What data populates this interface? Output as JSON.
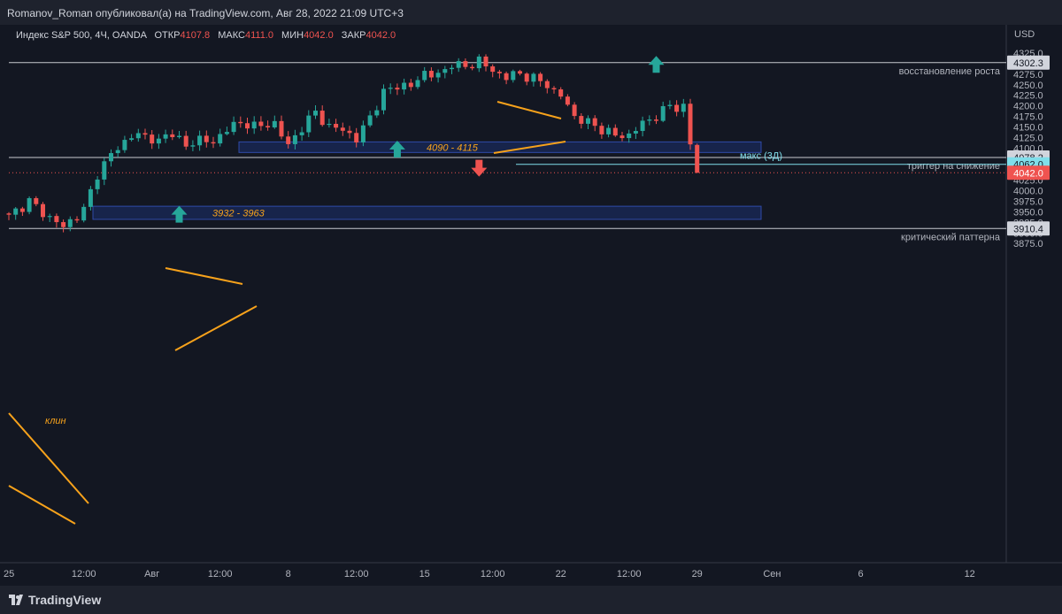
{
  "header": {
    "published_by": "Romanov_Roman опубликовал(а) на TradingView.com, Авг 28, 2022 21:09 UTC+3"
  },
  "legend": {
    "symbol": "Индекс S&P 500, 4Ч, OANDA",
    "open_label": "ОТКР",
    "open_value": "4107.8",
    "high_label": "МАКС",
    "high_value": "4111.0",
    "low_label": "МИН",
    "low_value": "4042.0",
    "close_label": "ЗАКР",
    "close_value": "4042.0"
  },
  "footer": {
    "brand": "TradingView"
  },
  "colors": {
    "background": "#131722",
    "up": "#26a69a",
    "down": "#ef5350",
    "drawing": "#f7a21b",
    "zone_fill": "#1a2a5a",
    "zone_border": "#2f4aa8",
    "level_line": "#c8cad0",
    "max_line": "#80deea"
  },
  "chart_data": {
    "type": "candlestick",
    "title": "Индекс S&P 500, 4Ч, OANDA",
    "ylabel": "USD",
    "ylim": [
      3860,
      4340
    ],
    "y_ticks": [
      3875,
      3900,
      3925,
      3950,
      3975,
      4000,
      4025,
      4050,
      4075,
      4100,
      4125,
      4150,
      4175,
      4200,
      4225,
      4250,
      4275,
      4300,
      4325
    ],
    "x_ticks": [
      "25",
      "12:00",
      "Авг",
      "12:00",
      "8",
      "12:00",
      "15",
      "12:00",
      "22",
      "12:00",
      "29",
      "Сен",
      "6",
      "12"
    ],
    "x_tick_bar_index": [
      0,
      11,
      21,
      31,
      41,
      51,
      61,
      71,
      81,
      91,
      101,
      112,
      125,
      141
    ],
    "bars": 102,
    "anchors": [
      [
        0,
        3940
      ],
      [
        3,
        3975
      ],
      [
        6,
        3935
      ],
      [
        8,
        3915
      ],
      [
        11,
        3955
      ],
      [
        13,
        4040
      ],
      [
        16,
        4105
      ],
      [
        19,
        4135
      ],
      [
        22,
        4115
      ],
      [
        24,
        4140
      ],
      [
        26,
        4100
      ],
      [
        28,
        4125
      ],
      [
        30,
        4110
      ],
      [
        32,
        4150
      ],
      [
        35,
        4160
      ],
      [
        37,
        4150
      ],
      [
        39,
        4160
      ],
      [
        41,
        4105
      ],
      [
        43,
        4150
      ],
      [
        45,
        4185
      ],
      [
        47,
        4150
      ],
      [
        49,
        4145
      ],
      [
        51,
        4120
      ],
      [
        53,
        4175
      ],
      [
        55,
        4230
      ],
      [
        57,
        4250
      ],
      [
        59,
        4245
      ],
      [
        61,
        4280
      ],
      [
        63,
        4270
      ],
      [
        65,
        4300
      ],
      [
        67,
        4290
      ],
      [
        69,
        4310
      ],
      [
        71,
        4280
      ],
      [
        73,
        4270
      ],
      [
        75,
        4275
      ],
      [
        77,
        4265
      ],
      [
        79,
        4250
      ],
      [
        81,
        4225
      ],
      [
        83,
        4175
      ],
      [
        85,
        4160
      ],
      [
        87,
        4145
      ],
      [
        89,
        4130
      ],
      [
        91,
        4130
      ],
      [
        93,
        4160
      ],
      [
        95,
        4175
      ],
      [
        97,
        4200
      ],
      [
        99,
        4195
      ],
      [
        100,
        4110
      ],
      [
        101,
        4042
      ]
    ],
    "last_bar": {
      "open": 4107.8,
      "high": 4111.0,
      "low": 4042.0,
      "close": 4042.0
    },
    "price_labels": [
      {
        "value": 4302.3,
        "text": "4302.3",
        "style": "gray"
      },
      {
        "value": 4078.2,
        "text": "4078.2",
        "style": "gray"
      },
      {
        "value": 4062.0,
        "text": "4062.0",
        "style": "cyan"
      },
      {
        "value": 4042.0,
        "text": "4042.0",
        "style": "red"
      },
      {
        "value": 3910.4,
        "text": "3910.4",
        "style": "gray"
      }
    ],
    "horizontal_lines": [
      {
        "value": 4302.3,
        "label": "восстановление роста"
      },
      {
        "value": 4078.2,
        "label": "триггер на снижение"
      },
      {
        "value": 3910.4,
        "label": "критический паттерна"
      }
    ],
    "max_line": {
      "value": 4062.0,
      "label": "макс (3Д)"
    },
    "zones": [
      {
        "from": 4090,
        "to": 4115,
        "label": "4090 - 4115"
      },
      {
        "from": 3932,
        "to": 3963,
        "label": "3932 - 3963"
      }
    ],
    "wedge_label": "клин",
    "arrows": [
      {
        "direction": "up",
        "bar": 95,
        "price": 4297
      },
      {
        "direction": "up",
        "bar": 57,
        "price": 4097
      },
      {
        "direction": "up",
        "bar": 25,
        "price": 3943
      },
      {
        "direction": "down",
        "bar": 69,
        "price": 4054
      }
    ]
  }
}
